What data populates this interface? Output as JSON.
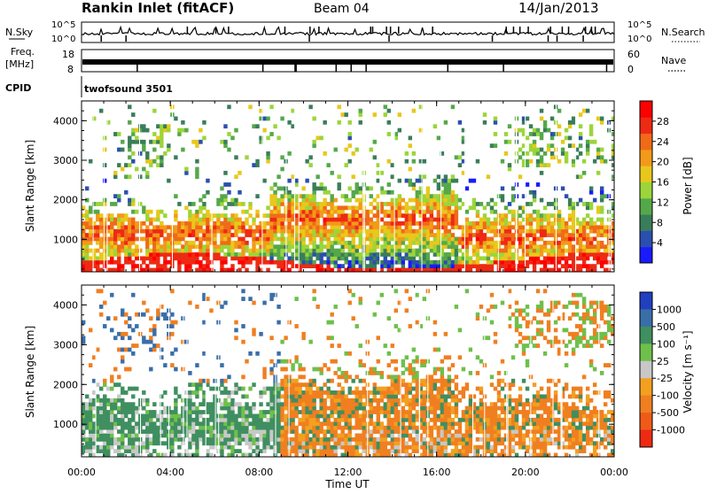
{
  "header": {
    "station": "Rankin Inlet (fitACF)",
    "beam": "Beam 04",
    "date": "14/Jan/2013"
  },
  "strip_noise": {
    "left_label": "N.Sky",
    "right_label": "N.Search",
    "left_ticks": [
      "10^5",
      "10^0"
    ],
    "right_ticks": [
      "10^5",
      "10^0"
    ]
  },
  "strip_freq": {
    "left_label_1": "Freq.",
    "left_label_2": "[MHz]",
    "right_label": "Nave",
    "left_ticks": [
      "18",
      "8"
    ],
    "right_ticks": [
      "60",
      "0"
    ]
  },
  "strip_cpid": {
    "label": "CPID",
    "program": "twofsound 3501"
  },
  "chart_data": [
    {
      "type": "heatmap",
      "quantity": "Power",
      "ylabel": "Slant Range [km]",
      "xlabel": "Time UT",
      "x_ticks": [
        "00:00",
        "04:00",
        "08:00",
        "12:00",
        "16:00",
        "20:00",
        "00:00"
      ],
      "y_ticks": [
        1000,
        2000,
        3000,
        4000
      ],
      "ylim": [
        180,
        4500
      ],
      "colorbar": {
        "label": "Power [dB]",
        "ticks": [
          4,
          8,
          12,
          16,
          20,
          24,
          28
        ],
        "range": [
          0,
          32
        ],
        "colors": [
          "#1a1aff",
          "#2b4fb0",
          "#3a7d5a",
          "#55a84a",
          "#9bd53a",
          "#e8c81c",
          "#f39a19",
          "#f06a18",
          "#ee2a14",
          "#ff0000"
        ]
      },
      "dominant_features": [
        {
          "time": "00:00-08:00",
          "range_km": "300-1600",
          "power_db": "20-30"
        },
        {
          "time": "09:00-16:00",
          "range_km": "600-2000",
          "power_db": "16-28"
        },
        {
          "time": "17:00-24:00",
          "range_km": "400-1600",
          "power_db": "20-30"
        }
      ]
    },
    {
      "type": "heatmap",
      "quantity": "Velocity",
      "ylabel": "Slant Range [km]",
      "xlabel": "Time UT",
      "x_ticks": [
        "00:00",
        "04:00",
        "08:00",
        "12:00",
        "16:00",
        "20:00",
        "00:00"
      ],
      "y_ticks": [
        1000,
        2000,
        3000,
        4000
      ],
      "ylim": [
        180,
        4500
      ],
      "colorbar": {
        "label": "Velocity [m s⁻¹]",
        "ticks": [
          "1000",
          "500",
          "100",
          "25",
          "-25",
          "-100",
          "-500",
          "-1000"
        ],
        "colors": [
          "#2040c0",
          "#3a6ea8",
          "#3f8f60",
          "#6ec04a",
          "#c8c8c8",
          "#f3a020",
          "#f07f20",
          "#ef5a18",
          "#ee2a14"
        ],
        "ground_scatter": "#c8c8c8"
      },
      "dominant_features": [
        {
          "time": "00:00-09:00",
          "range_km": "300-1800",
          "velocity": "positive 100-500"
        },
        {
          "time": "10:00-18:00",
          "range_km": "600-2100",
          "velocity": "negative -100 to -500"
        },
        {
          "time": "18:00-24:00",
          "range_km": "400-1700",
          "velocity": "negative -100 to -500"
        }
      ]
    }
  ],
  "axis": {
    "xlabel": "Time UT",
    "ylabel": "Slant Range [km]"
  }
}
